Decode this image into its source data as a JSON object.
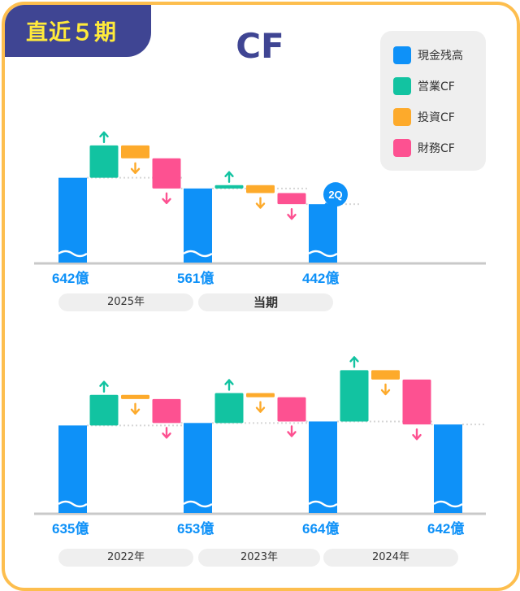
{
  "badge": "直近５期",
  "title": "CF",
  "colors": {
    "cash": "#0E91F8",
    "operating": "#12C3A1",
    "investing": "#FDAA2B",
    "financial": "#FD5191",
    "frame": "#FDBE4E",
    "navy": "#3F4593",
    "badge_text": "#FFEA3B"
  },
  "legend": [
    {
      "label": "現金残高",
      "color": "#0E91F8"
    },
    {
      "label": "営業CF",
      "color": "#12C3A1"
    },
    {
      "label": "投資CF",
      "color": "#FDAA2B"
    },
    {
      "label": "財務CF",
      "color": "#FD5191"
    }
  ],
  "period_labels": {
    "y2025": "2025年",
    "current": "当期",
    "y2022": "2022年",
    "y2023": "2023年",
    "y2024": "2024年"
  },
  "quarter_badge": "2Q",
  "chart_data": [
    {
      "type": "waterfall",
      "title": "2025年 / 当期",
      "unit": "億",
      "cash_balances": [
        642,
        561,
        442
      ],
      "cash_labels": [
        "642億",
        "561億",
        "442億"
      ],
      "periods": [
        {
          "name": "2025年",
          "operating": 245,
          "investing": -98,
          "financial": -228
        },
        {
          "name": "当期",
          "operating": 25,
          "investing": -60,
          "financial": -84
        }
      ]
    },
    {
      "type": "waterfall",
      "title": "2022年 / 2023年 / 2024年",
      "unit": "億",
      "cash_balances": [
        635,
        653,
        664,
        642
      ],
      "cash_labels": [
        "635億",
        "653億",
        "664億",
        "642億"
      ],
      "periods": [
        {
          "name": "2022年",
          "operating": 222,
          "investing": -30,
          "financial": -174
        },
        {
          "name": "2023年",
          "operating": 217,
          "investing": -30,
          "financial": -176
        },
        {
          "name": "2024年",
          "operating": 372,
          "investing": -68,
          "financial": -326
        }
      ]
    }
  ]
}
